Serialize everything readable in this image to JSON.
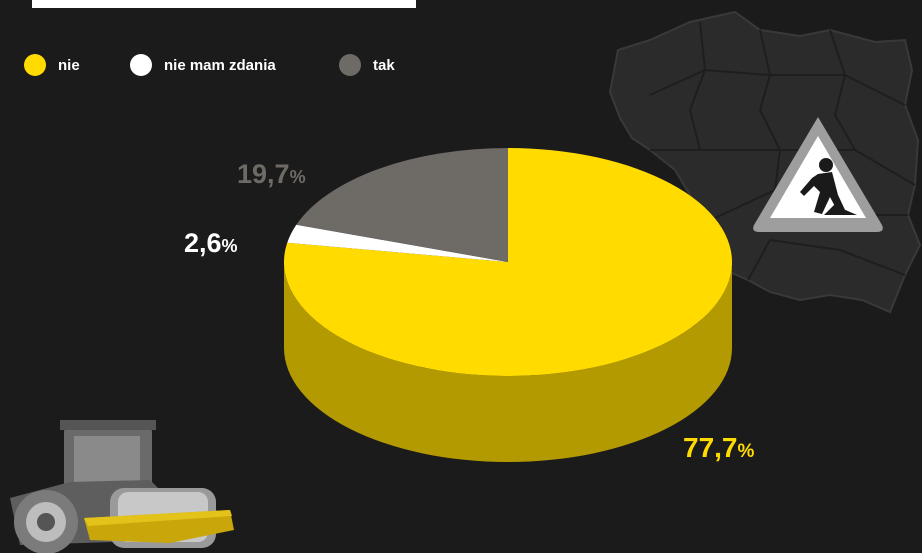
{
  "colors": {
    "background": "#1c1b1b",
    "nie": "#ffdb00",
    "nie_side": "#b39a00",
    "nie_mam_zdania": "#ffffff",
    "nie_mam_zdania_side": "#cfcfcf",
    "tak": "#6e6b67",
    "tak_side": "#4a4845",
    "map": "#2c2b2b",
    "map_stroke": "#3a3939"
  },
  "icons": {
    "map": "poland-map-icon",
    "sign": "road-works-sign-icon",
    "roller": "road-roller-icon"
  },
  "chart_data": {
    "type": "pie",
    "series": [
      {
        "name": "nie",
        "value": 77.7,
        "label_num": "77,7",
        "color": "#ffdb00"
      },
      {
        "name": "nie mam zdania",
        "value": 2.6,
        "label_num": "2,6",
        "color": "#ffffff"
      },
      {
        "name": "tak",
        "value": 19.7,
        "label_num": "19,7",
        "color": "#6e6b67"
      }
    ],
    "unit": "%",
    "legend_position": "top-left",
    "style": "3d"
  }
}
